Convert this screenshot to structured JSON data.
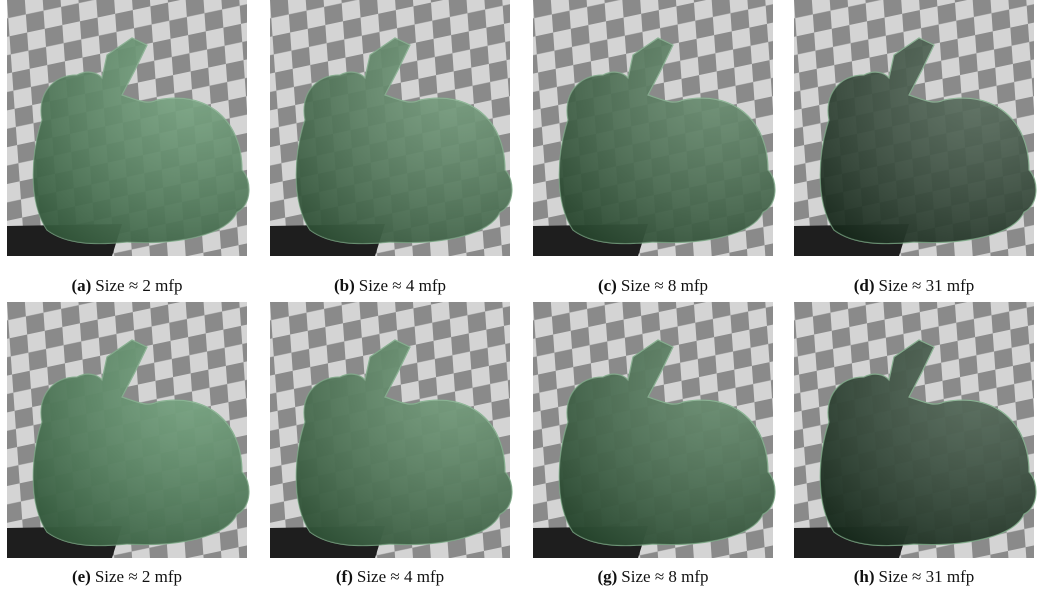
{
  "figure": {
    "panels": [
      {
        "label": "(a)",
        "caption": "Size ≈ 2 mfp"
      },
      {
        "label": "(b)",
        "caption": "Size ≈ 4 mfp"
      },
      {
        "label": "(c)",
        "caption": "Size ≈ 8 mfp"
      },
      {
        "label": "(d)",
        "caption": "Size ≈ 31 mfp"
      },
      {
        "label": "(e)",
        "caption": "Size ≈ 2 mfp"
      },
      {
        "label": "(f)",
        "caption": "Size ≈ 4 mfp"
      },
      {
        "label": "(g)",
        "caption": "Size ≈ 8 mfp"
      },
      {
        "label": "(h)",
        "caption": "Size ≈ 31 mfp"
      }
    ]
  }
}
